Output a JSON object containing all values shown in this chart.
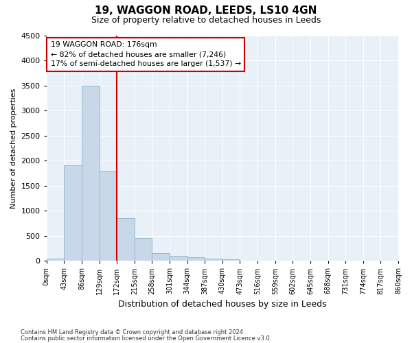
{
  "title": "19, WAGGON ROAD, LEEDS, LS10 4GN",
  "subtitle": "Size of property relative to detached houses in Leeds",
  "xlabel": "Distribution of detached houses by size in Leeds",
  "ylabel": "Number of detached properties",
  "bin_edges": [
    0,
    43,
    86,
    129,
    172,
    215,
    258,
    301,
    344,
    387,
    430,
    473,
    516,
    559,
    602,
    645,
    688,
    731,
    774,
    817,
    860
  ],
  "bar_heights": [
    50,
    1900,
    3500,
    1800,
    850,
    450,
    150,
    100,
    70,
    50,
    30,
    10,
    5,
    3,
    2,
    1,
    1,
    0,
    0,
    0
  ],
  "bar_color": "#c8d8e8",
  "bar_edge_color": "#8ab4d0",
  "vline_x": 172,
  "vline_color": "#cc0000",
  "annotation_text": "19 WAGGON ROAD: 176sqm\n← 82% of detached houses are smaller (7,246)\n17% of semi-detached houses are larger (1,537) →",
  "annotation_box_color": "#cc0000",
  "ylim": [
    0,
    4500
  ],
  "yticks": [
    0,
    500,
    1000,
    1500,
    2000,
    2500,
    3000,
    3500,
    4000,
    4500
  ],
  "background_color": "#e8f0f8",
  "grid_color": "#ffffff",
  "footer_line1": "Contains HM Land Registry data © Crown copyright and database right 2024.",
  "footer_line2": "Contains public sector information licensed under the Open Government Licence v3.0."
}
